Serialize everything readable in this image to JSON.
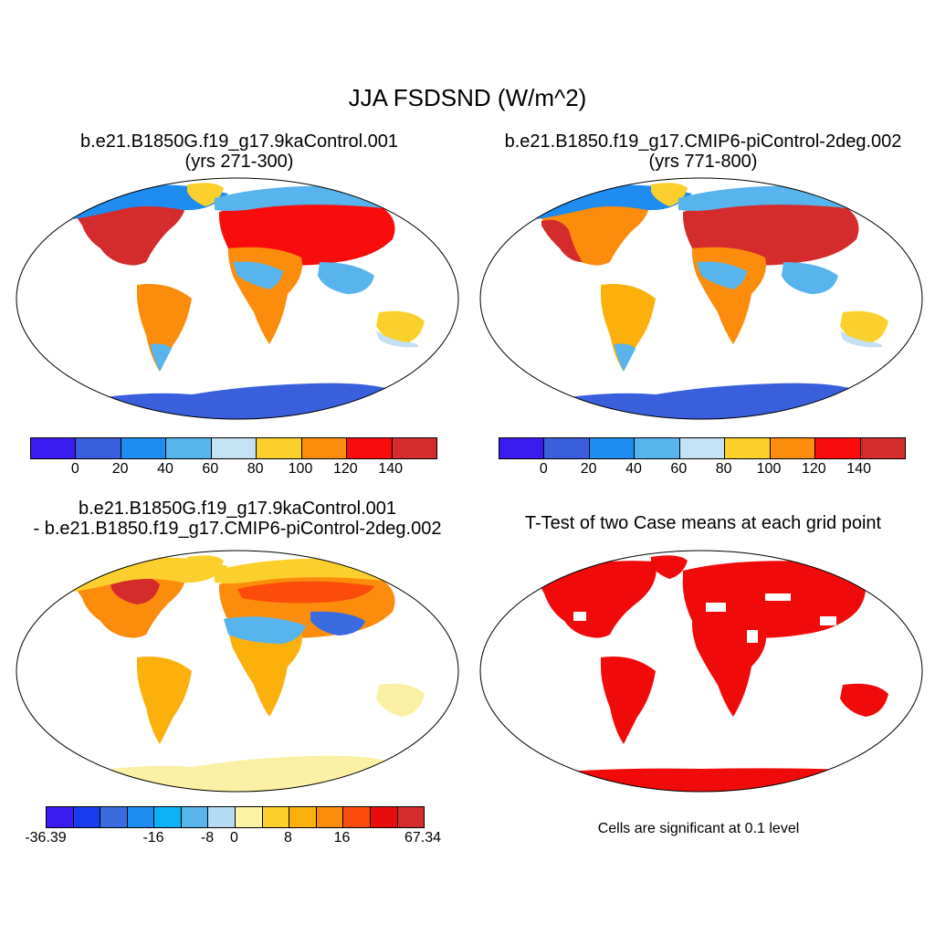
{
  "title": "JJA FSDSND (W/m^2)",
  "panels": [
    {
      "title_line1": "b.e21.B1850G.f19_g17.9kaControl.001",
      "title_line2": "(yrs 271-300)",
      "colorbar": {
        "colors": [
          "#3a1cf0",
          "#3a5fdc",
          "#1e8cf0",
          "#58b4ec",
          "#c4e2f4",
          "#fcd02c",
          "#fc8c0c",
          "#f80c0c",
          "#d42c2c"
        ],
        "tick_labels": [
          "0",
          "20",
          "40",
          "60",
          "80",
          "100",
          "120",
          "140"
        ]
      }
    },
    {
      "title_line1": "b.e21.B1850.f19_g17.CMIP6-piControl-2deg.002",
      "title_line2": "(yrs 771-800)",
      "colorbar": {
        "colors": [
          "#3a1cf0",
          "#3a5fdc",
          "#1e8cf0",
          "#58b4ec",
          "#c4e2f4",
          "#fcd02c",
          "#fc8c0c",
          "#f80c0c",
          "#d42c2c"
        ],
        "tick_labels": [
          "0",
          "20",
          "40",
          "60",
          "80",
          "100",
          "120",
          "140"
        ]
      }
    },
    {
      "title_line1": "b.e21.B1850G.f19_g17.9kaControl.001",
      "title_line2": "- b.e21.B1850.f19_g17.CMIP6-piControl-2deg.002",
      "colorbar": {
        "colors": [
          "#3a1cf0",
          "#1a3cf0",
          "#3a6ce0",
          "#1e8cf0",
          "#0cb0f4",
          "#58b4ec",
          "#b4dcf4",
          "#fcf4a4",
          "#fcd02c",
          "#fcb00c",
          "#fc8c0c",
          "#fc4c0c",
          "#e80c0c",
          "#d42c2c"
        ],
        "tick_labels": [
          "-36.39",
          "-16",
          "-8",
          "0",
          "8",
          "16",
          "67.34"
        ]
      }
    },
    {
      "title": "T-Test of two Case means at each grid point",
      "note": "Cells are significant at 0.1 level",
      "significant_color": "#f00a0a"
    }
  ]
}
